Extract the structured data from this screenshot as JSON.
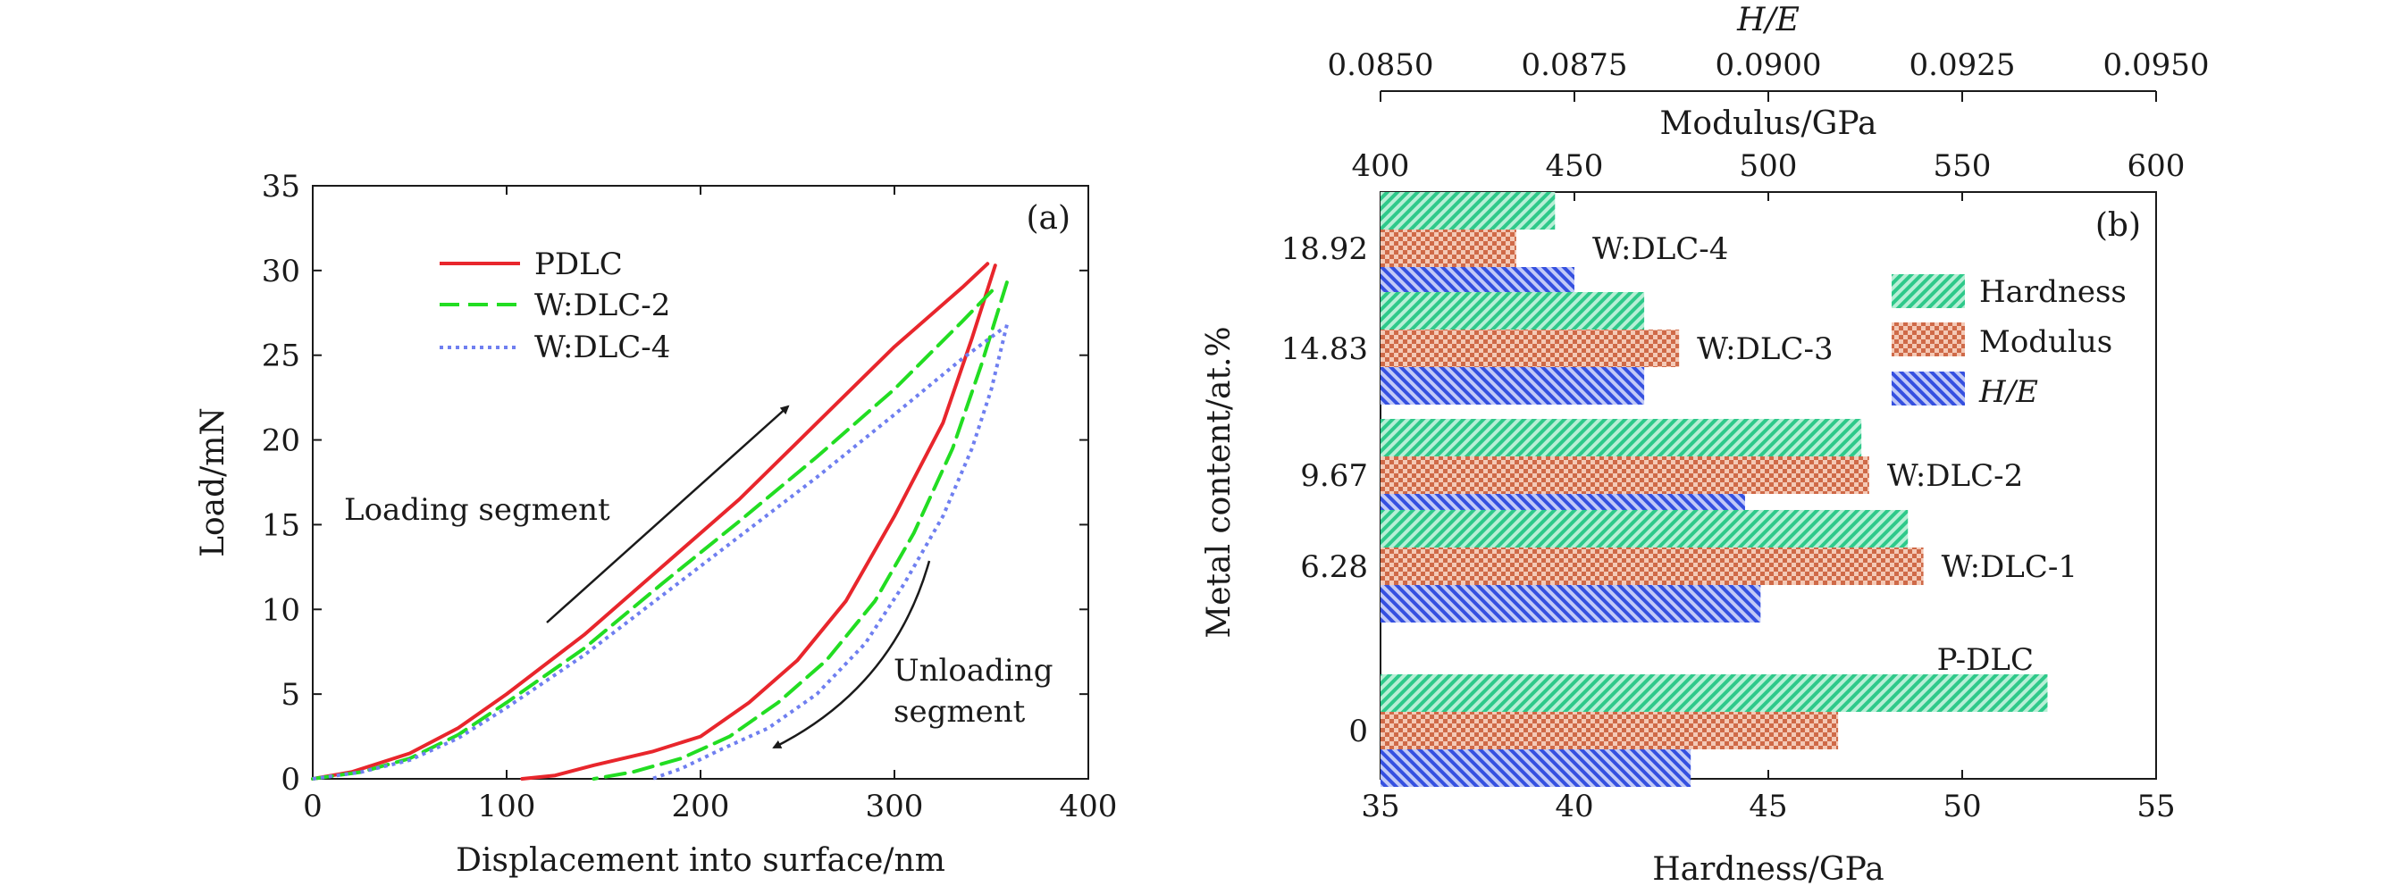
{
  "chart_data": [
    {
      "type": "line",
      "panel_label": "(a)",
      "xlabel": "Displacement into surface/nm",
      "ylabel": "Load/mN",
      "xlim": [
        0,
        400
      ],
      "ylim": [
        0,
        35
      ],
      "xticks": [
        "0",
        "100",
        "200",
        "300",
        "400"
      ],
      "yticks": [
        "0",
        "5",
        "10",
        "15",
        "20",
        "25",
        "30",
        "35"
      ],
      "legend_position": "upper-left",
      "annotations": {
        "loading": "Loading segment",
        "unloading_line1": "Unloading",
        "unloading_line2": "segment"
      },
      "series": [
        {
          "name": "PDLC",
          "color": "#e8262c",
          "style": "solid",
          "loading": [
            [
              0,
              0
            ],
            [
              20,
              0.4
            ],
            [
              50,
              1.5
            ],
            [
              75,
              3
            ],
            [
              100,
              5
            ],
            [
              140,
              8.5
            ],
            [
              180,
              12.5
            ],
            [
              220,
              16.5
            ],
            [
              260,
              21
            ],
            [
              300,
              25.5
            ],
            [
              335,
              29
            ],
            [
              348,
              30.4
            ]
          ],
          "unloading": [
            [
              352,
              30.3
            ],
            [
              340,
              26
            ],
            [
              325,
              21
            ],
            [
              300,
              15.5
            ],
            [
              275,
              10.5
            ],
            [
              250,
              7
            ],
            [
              225,
              4.5
            ],
            [
              200,
              2.5
            ],
            [
              175,
              1.6
            ],
            [
              145,
              0.8
            ],
            [
              125,
              0.2
            ],
            [
              108,
              0
            ]
          ]
        },
        {
          "name": "W:DLC-2",
          "color": "#22dd22",
          "style": "dashed",
          "loading": [
            [
              0,
              0
            ],
            [
              25,
              0.4
            ],
            [
              50,
              1.2
            ],
            [
              75,
              2.6
            ],
            [
              100,
              4.5
            ],
            [
              140,
              7.7
            ],
            [
              180,
              11.5
            ],
            [
              220,
              15.2
            ],
            [
              260,
              19
            ],
            [
              300,
              23
            ],
            [
              335,
              27
            ],
            [
              352,
              29
            ]
          ],
          "unloading": [
            [
              358,
              29.3
            ],
            [
              345,
              24.5
            ],
            [
              330,
              19.5
            ],
            [
              310,
              14.5
            ],
            [
              290,
              10.5
            ],
            [
              265,
              7
            ],
            [
              240,
              4.5
            ],
            [
              215,
              2.5
            ],
            [
              190,
              1.2
            ],
            [
              165,
              0.4
            ],
            [
              145,
              0
            ]
          ]
        },
        {
          "name": "W:DLC-4",
          "color": "#6f7ff0",
          "style": "dotted",
          "loading": [
            [
              0,
              0
            ],
            [
              25,
              0.4
            ],
            [
              50,
              1.1
            ],
            [
              75,
              2.4
            ],
            [
              100,
              4.2
            ],
            [
              140,
              7.3
            ],
            [
              180,
              10.8
            ],
            [
              220,
              14.3
            ],
            [
              260,
              17.8
            ],
            [
              300,
              21.5
            ],
            [
              335,
              24.8
            ],
            [
              355,
              26.5
            ]
          ],
          "unloading": [
            [
              358,
              26.8
            ],
            [
              350,
              23
            ],
            [
              340,
              19.5
            ],
            [
              325,
              15.5
            ],
            [
              305,
              11.5
            ],
            [
              285,
              8
            ],
            [
              260,
              5
            ],
            [
              235,
              3
            ],
            [
              210,
              1.7
            ],
            [
              190,
              0.6
            ],
            [
              175,
              0
            ]
          ]
        }
      ]
    },
    {
      "type": "bar",
      "orientation": "horizontal",
      "panel_label": "(b)",
      "ylabel": "Metal content/at.%",
      "x_axes": {
        "bottom": {
          "label": "Hardness/GPa",
          "lim": [
            35,
            55
          ],
          "ticks": [
            "35",
            "40",
            "45",
            "50",
            "55"
          ]
        },
        "top_inner": {
          "label": "Modulus/GPa",
          "lim": [
            400,
            600
          ],
          "ticks": [
            "400",
            "450",
            "500",
            "550",
            "600"
          ]
        },
        "top_outer": {
          "label": "H/E",
          "lim": [
            0.085,
            0.095
          ],
          "ticks": [
            "0.0850",
            "0.0875",
            "0.0900",
            "0.0925",
            "0.0950"
          ]
        }
      },
      "legend_position": "right",
      "legend": [
        {
          "name": "Hardness",
          "color": "#2ec98a",
          "pattern": "diag"
        },
        {
          "name": "Modulus",
          "color": "#d8704f",
          "pattern": "check"
        },
        {
          "name": "H/E",
          "color": "#3550e0",
          "pattern": "diag",
          "italic": true
        }
      ],
      "categories": [
        "18.92",
        "14.83",
        "9.67",
        "6.28",
        "0"
      ],
      "sample_labels": [
        "W:DLC-4",
        "W:DLC-3",
        "W:DLC-2",
        "W:DLC-1",
        "P-DLC"
      ],
      "values": {
        "Hardness": [
          39.5,
          41.8,
          47.4,
          48.6,
          52.2
        ],
        "Modulus": [
          435,
          477,
          526,
          540,
          518
        ],
        "H/E": [
          0.0875,
          0.0884,
          0.0897,
          0.0899,
          0.089
        ]
      },
      "hardness_values": [
        39.5,
        41.8,
        47.4,
        48.6,
        52.2
      ],
      "modulus_values": [
        435,
        477,
        526,
        540,
        518
      ],
      "he_values": [
        0.0875,
        0.0884,
        0.0897,
        0.0899,
        0.089
      ]
    }
  ]
}
